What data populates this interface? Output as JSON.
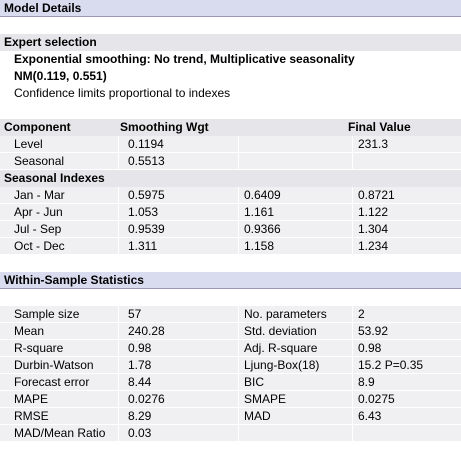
{
  "title": "Model Details",
  "expert": {
    "heading": "Expert selection",
    "lines": [
      "Exponential smoothing: No trend, Multiplicative seasonality",
      "NM(0.119, 0.551)",
      "Confidence limits proportional to indexes"
    ]
  },
  "components": {
    "header": [
      "Component",
      "Smoothing Wgt",
      "Final Value"
    ],
    "rows": [
      [
        "Level",
        "0.1194",
        "231.3"
      ],
      [
        "Seasonal",
        "0.5513"
      ]
    ]
  },
  "seasonal_indexes": {
    "heading": "Seasonal Indexes",
    "rows": [
      [
        "Jan - Mar",
        "0.5975",
        "0.6409",
        "0.8721"
      ],
      [
        "Apr - Jun",
        "1.053",
        "1.161",
        "1.122"
      ],
      [
        "Jul - Sep",
        "0.9539",
        "0.9366",
        "1.304"
      ],
      [
        "Oct - Dec",
        "1.311",
        "1.158",
        "1.234"
      ]
    ]
  },
  "statistics": {
    "heading": "Within-Sample Statistics",
    "rows": [
      [
        "Sample size",
        "57",
        "No. parameters",
        "2"
      ],
      [
        "Mean",
        "240.28",
        "Std. deviation",
        "53.92"
      ],
      [
        "R-square",
        "0.98",
        "Adj. R-square",
        "0.98"
      ],
      [
        "Durbin-Watson",
        "1.78",
        "Ljung-Box(18)",
        "15.2 P=0.35"
      ],
      [
        "Forecast error",
        "8.44",
        "BIC",
        "8.9"
      ],
      [
        "MAPE",
        "0.0276",
        "SMAPE",
        "0.0275"
      ],
      [
        "RMSE",
        "8.29",
        "MAD",
        "6.43"
      ],
      [
        "MAD/Mean Ratio",
        "0.03"
      ]
    ]
  }
}
